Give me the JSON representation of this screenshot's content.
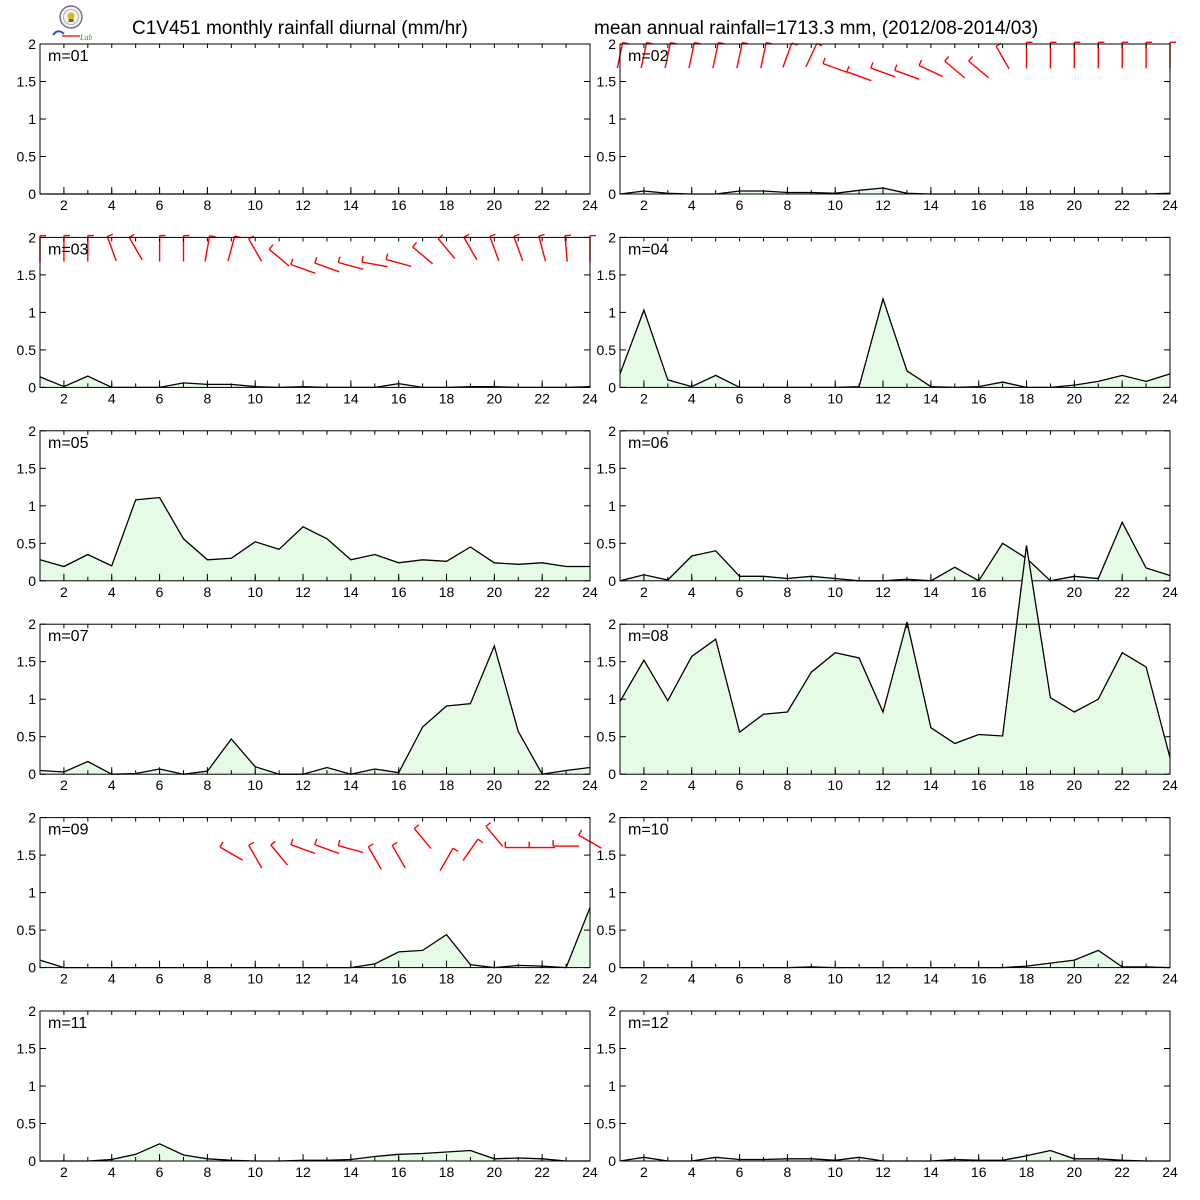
{
  "header": {
    "title_left": "C1V451 monthly rainfall diurnal (mm/hr)",
    "title_right": "mean annual rainfall=1713.3 mm, (2012/08-2014/03)"
  },
  "logo": {
    "icon": "lab-seal-icon",
    "caption": "Lab"
  },
  "colors": {
    "fill": "#e6fbe6",
    "line": "#000000",
    "barb": "#ff0000"
  },
  "chart_data": {
    "type": "area",
    "x": [
      1,
      2,
      3,
      4,
      5,
      6,
      7,
      8,
      9,
      10,
      11,
      12,
      13,
      14,
      15,
      16,
      17,
      18,
      19,
      20,
      21,
      22,
      23,
      24
    ],
    "xticks": [
      2,
      4,
      6,
      8,
      10,
      12,
      14,
      16,
      18,
      20,
      22,
      24
    ],
    "xlim": [
      1,
      24
    ],
    "ylim": [
      0,
      2
    ],
    "yticks": [
      "0",
      "0.5",
      "1",
      "1.5",
      "2"
    ],
    "grid": false,
    "panels": [
      {
        "name": "m=01",
        "values": [
          0,
          0,
          0,
          0,
          0,
          0,
          0,
          0,
          0,
          0,
          0,
          0,
          0,
          0,
          0,
          0,
          0,
          0,
          0,
          0,
          0,
          0,
          0,
          0
        ],
        "barbs": []
      },
      {
        "name": "m=02",
        "values": [
          0,
          0.04,
          0.01,
          0,
          0,
          0.04,
          0.04,
          0.02,
          0.02,
          0.01,
          0.05,
          0.08,
          0.01,
          0,
          0,
          0,
          0,
          0,
          0,
          0,
          0,
          0,
          0,
          0.01
        ],
        "barbs": [
          [
            1,
            1.85,
            12
          ],
          [
            2,
            1.85,
            12
          ],
          [
            3,
            1.85,
            12
          ],
          [
            4,
            1.85,
            12
          ],
          [
            5,
            1.85,
            12
          ],
          [
            6,
            1.85,
            12
          ],
          [
            7,
            1.85,
            12
          ],
          [
            8,
            1.85,
            20
          ],
          [
            9,
            1.85,
            25
          ],
          [
            10,
            1.68,
            290
          ],
          [
            11,
            1.57,
            290
          ],
          [
            12,
            1.62,
            290
          ],
          [
            13,
            1.59,
            290
          ],
          [
            14,
            1.64,
            295
          ],
          [
            15,
            1.66,
            310
          ],
          [
            16,
            1.66,
            310
          ],
          [
            17,
            1.82,
            330
          ],
          [
            18,
            1.85,
            0
          ],
          [
            19,
            1.85,
            0
          ],
          [
            20,
            1.85,
            0
          ],
          [
            21,
            1.85,
            0
          ],
          [
            22,
            1.85,
            0
          ],
          [
            23,
            1.85,
            0
          ],
          [
            24,
            1.85,
            0
          ]
        ]
      },
      {
        "name": "m=03",
        "values": [
          0.14,
          0.01,
          0.15,
          0,
          0,
          0,
          0.06,
          0.04,
          0.04,
          0.01,
          0,
          0.01,
          0,
          0,
          0,
          0.05,
          0,
          0,
          0.01,
          0.01,
          0,
          0,
          0,
          0.01
        ],
        "barbs": [
          [
            1,
            1.85,
            0
          ],
          [
            2,
            1.85,
            0
          ],
          [
            3,
            1.85,
            0
          ],
          [
            4,
            1.85,
            340
          ],
          [
            5,
            1.85,
            330
          ],
          [
            6,
            1.85,
            0
          ],
          [
            7,
            1.85,
            0
          ],
          [
            8,
            1.85,
            10
          ],
          [
            9,
            1.85,
            15
          ],
          [
            10,
            1.83,
            330
          ],
          [
            11,
            1.73,
            310
          ],
          [
            12,
            1.58,
            290
          ],
          [
            13,
            1.6,
            290
          ],
          [
            14,
            1.62,
            285
          ],
          [
            15,
            1.64,
            280
          ],
          [
            16,
            1.66,
            285
          ],
          [
            17,
            1.76,
            310
          ],
          [
            18,
            1.85,
            320
          ],
          [
            19,
            1.85,
            330
          ],
          [
            20,
            1.85,
            340
          ],
          [
            21,
            1.85,
            340
          ],
          [
            22,
            1.85,
            345
          ],
          [
            23,
            1.85,
            355
          ],
          [
            24,
            1.85,
            0
          ]
        ]
      },
      {
        "name": "m=04",
        "values": [
          0.18,
          1.03,
          0.1,
          0.01,
          0.16,
          0,
          0,
          0,
          0,
          0,
          0.01,
          1.18,
          0.22,
          0.01,
          0,
          0.01,
          0.07,
          0,
          0,
          0.03,
          0.08,
          0.16,
          0.08,
          0.18
        ],
        "barbs": []
      },
      {
        "name": "m=05",
        "values": [
          0.28,
          0.19,
          0.35,
          0.2,
          1.08,
          1.11,
          0.56,
          0.28,
          0.3,
          0.52,
          0.42,
          0.72,
          0.56,
          0.28,
          0.35,
          0.24,
          0.28,
          0.26,
          0.45,
          0.24,
          0.22,
          0.24,
          0.19,
          0.19
        ],
        "barbs": []
      },
      {
        "name": "m=06",
        "values": [
          0,
          0.08,
          0.01,
          0.33,
          0.4,
          0.06,
          0.06,
          0.03,
          0.06,
          0.03,
          0,
          0,
          0.02,
          0,
          0.18,
          0,
          0.5,
          0.3,
          0,
          0.06,
          0.03,
          0.78,
          0.17,
          0.07
        ],
        "barbs": []
      },
      {
        "name": "m=07",
        "values": [
          0.05,
          0.03,
          0.17,
          0,
          0.01,
          0.07,
          0,
          0.04,
          0.47,
          0.1,
          0,
          0,
          0.09,
          0,
          0.07,
          0.02,
          0.63,
          0.91,
          0.94,
          1.71,
          0.57,
          0,
          0.05,
          0.09
        ],
        "barbs": []
      },
      {
        "name": "m=08",
        "values": [
          0.97,
          1.52,
          0.98,
          1.57,
          1.8,
          0.56,
          0.8,
          0.83,
          1.36,
          1.62,
          1.55,
          0.83,
          2.03,
          0.62,
          0.41,
          0.53,
          0.51,
          3.05,
          1.02,
          0.83,
          1.0,
          1.62,
          1.43,
          0.22
        ],
        "barbs": []
      },
      {
        "name": "m=09",
        "values": [
          0.1,
          0,
          0,
          0,
          0,
          0,
          0,
          0,
          0,
          0,
          0,
          0,
          0,
          0,
          0.05,
          0.21,
          0.23,
          0.44,
          0.04,
          0,
          0.03,
          0.02,
          0,
          0.8
        ],
        "barbs": [
          [
            9,
            1.52,
            300
          ],
          [
            10,
            1.48,
            330
          ],
          [
            11,
            1.5,
            320
          ],
          [
            12,
            1.58,
            290
          ],
          [
            13,
            1.58,
            290
          ],
          [
            14,
            1.58,
            285
          ],
          [
            15,
            1.46,
            330
          ],
          [
            16,
            1.48,
            330
          ],
          [
            17,
            1.72,
            320
          ],
          [
            18,
            1.44,
            30
          ],
          [
            19,
            1.57,
            35
          ],
          [
            20,
            1.75,
            320
          ],
          [
            21,
            1.6,
            270
          ],
          [
            22,
            1.6,
            270
          ],
          [
            23,
            1.62,
            270
          ],
          [
            24,
            1.68,
            300
          ]
        ]
      },
      {
        "name": "m=10",
        "values": [
          0,
          0,
          0,
          0,
          0,
          0,
          0,
          0,
          0.01,
          0,
          0,
          0,
          0,
          0,
          0,
          0,
          0,
          0.02,
          0.06,
          0.1,
          0.23,
          0.01,
          0.01,
          0
        ],
        "barbs": []
      },
      {
        "name": "m=11",
        "values": [
          0,
          0,
          0,
          0.02,
          0.09,
          0.23,
          0.08,
          0.03,
          0.01,
          0,
          0,
          0.01,
          0.01,
          0.02,
          0.06,
          0.09,
          0.1,
          0.12,
          0.14,
          0.03,
          0.04,
          0.03,
          0,
          0
        ],
        "barbs": []
      },
      {
        "name": "m=12",
        "values": [
          0,
          0.05,
          0,
          0,
          0.05,
          0.02,
          0.02,
          0.03,
          0.03,
          0.01,
          0.05,
          0,
          0,
          0,
          0.02,
          0.01,
          0.01,
          0.07,
          0.14,
          0.03,
          0.03,
          0.01,
          0,
          0
        ],
        "barbs": []
      }
    ]
  }
}
